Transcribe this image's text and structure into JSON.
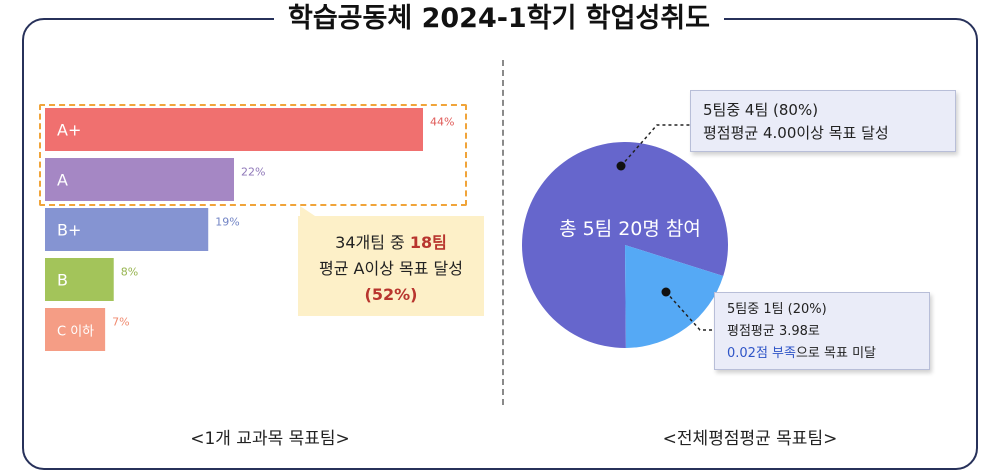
{
  "title": "학습공동체 2024-1학기 학업성취도",
  "chart_data": [
    {
      "type": "bar",
      "orientation": "horizontal",
      "categories": [
        "A+",
        "A",
        "B+",
        "B",
        "C 이하"
      ],
      "values": [
        44,
        22,
        19,
        8,
        7
      ],
      "value_labels": [
        "44%",
        "22%",
        "19%",
        "8%",
        "7%"
      ],
      "colors": [
        "#f0706f",
        "#a587c4",
        "#8594d2",
        "#a3c45a",
        "#f59d85"
      ],
      "label_colors": [
        "#e05a57",
        "#8f78b9",
        "#7284c5",
        "#97b44f",
        "#f08a6f"
      ],
      "xlim": [
        0,
        44
      ],
      "caption": "<1개 교과목 목표팀>",
      "annotation": {
        "line1": "34개팀 중 ",
        "line1_highlight": "18팀",
        "line2": "평균 A이상 목표 달성",
        "line3": "(52%)"
      }
    },
    {
      "type": "pie",
      "labels": [
        "목표 달성",
        "목표 미달"
      ],
      "values": [
        80,
        20
      ],
      "colors": [
        "#6666cc",
        "#55a9f5"
      ],
      "center_label": "총 5팀 20명 참여",
      "caption": "<전체평점평균 목표팀>",
      "callouts": {
        "achieved_line1": "5팀중 4팀 (80%)",
        "achieved_line2": "평점평균 4.00이상 목표 달성",
        "missed_line1": "5팀중 1팀 (20%)",
        "missed_line2": "평점평균 3.98로",
        "missed_line3_blue": "0.02점 부족",
        "missed_line3_rest": "으로 목표 미달"
      }
    }
  ]
}
